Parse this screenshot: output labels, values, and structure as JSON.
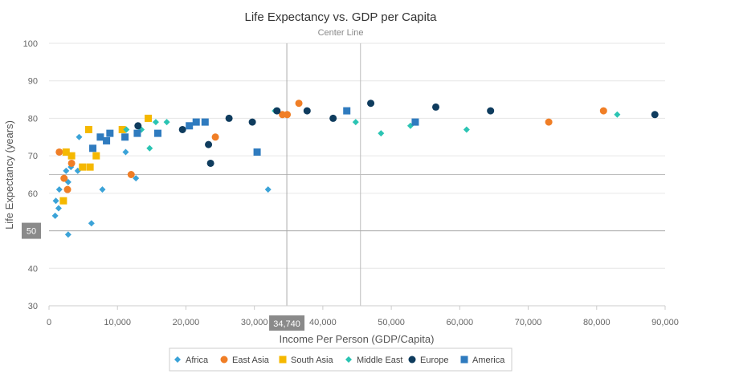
{
  "chart_data": {
    "type": "scatter",
    "title": "Life Expectancy vs. GDP per Capita",
    "subtitle": "Center Line",
    "xlabel": "Income Per Person (GDP/Capita)",
    "ylabel": "Life Expectancy (years)",
    "xlim": [
      0,
      90000
    ],
    "ylim": [
      30,
      100
    ],
    "x_ticks": [
      0,
      10000,
      20000,
      30000,
      40000,
      50000,
      60000,
      70000,
      80000,
      90000
    ],
    "x_tick_labels": [
      "0",
      "10,000",
      "20,000",
      "30,000",
      "40,000",
      "50,000",
      "60,000",
      "70,000",
      "80,000",
      "90,000"
    ],
    "y_ticks": [
      30,
      40,
      50,
      60,
      70,
      80,
      90,
      100
    ],
    "y_tick_labels": [
      "30",
      "40",
      "50",
      "60",
      "70",
      "80",
      "90",
      "100"
    ],
    "grid": "horizontal",
    "legend_position": "bottom",
    "reference_lines": {
      "vertical_x": 45500,
      "horizontal_y": 65,
      "crosshair_x": 34740,
      "crosshair_y": 50,
      "crosshair_x_label": "34,740",
      "crosshair_y_label": "50"
    },
    "series": [
      {
        "name": "Africa",
        "color": "#3ba3d8",
        "marker": "diamond",
        "points": [
          [
            900,
            54
          ],
          [
            1000,
            58
          ],
          [
            1400,
            56
          ],
          [
            1500,
            61
          ],
          [
            2300,
            64
          ],
          [
            2500,
            66
          ],
          [
            2800,
            49
          ],
          [
            2800,
            63
          ],
          [
            3200,
            67
          ],
          [
            4200,
            66
          ],
          [
            4400,
            75
          ],
          [
            6200,
            52
          ],
          [
            7800,
            61
          ],
          [
            11200,
            71
          ],
          [
            12700,
            64
          ],
          [
            32000,
            61
          ]
        ]
      },
      {
        "name": "East Asia",
        "color": "#f07e26",
        "marker": "circle",
        "points": [
          [
            1500,
            71
          ],
          [
            2200,
            64
          ],
          [
            2700,
            61
          ],
          [
            3300,
            68
          ],
          [
            12000,
            65
          ],
          [
            24300,
            75
          ],
          [
            34100,
            81
          ],
          [
            34800,
            81
          ],
          [
            36500,
            84
          ],
          [
            73000,
            79
          ],
          [
            81000,
            82
          ]
        ]
      },
      {
        "name": "South Asia",
        "color": "#f5b800",
        "marker": "square",
        "points": [
          [
            2100,
            58
          ],
          [
            2500,
            71
          ],
          [
            3300,
            70
          ],
          [
            4900,
            67
          ],
          [
            5800,
            77
          ],
          [
            6000,
            67
          ],
          [
            6900,
            70
          ],
          [
            10700,
            77
          ],
          [
            14500,
            80
          ]
        ]
      },
      {
        "name": "Middle East",
        "color": "#2bc4b3",
        "marker": "diamond",
        "points": [
          [
            11300,
            77
          ],
          [
            13500,
            77
          ],
          [
            14700,
            72
          ],
          [
            15600,
            79
          ],
          [
            17200,
            79
          ],
          [
            33000,
            82
          ],
          [
            44800,
            79
          ],
          [
            48500,
            76
          ],
          [
            52800,
            78
          ],
          [
            61000,
            77
          ],
          [
            83000,
            81
          ]
        ]
      },
      {
        "name": "Europe",
        "color": "#0f3c5e",
        "marker": "circle",
        "points": [
          [
            13000,
            78
          ],
          [
            19500,
            77
          ],
          [
            23300,
            73
          ],
          [
            23600,
            68
          ],
          [
            26300,
            80
          ],
          [
            29700,
            79
          ],
          [
            33300,
            82
          ],
          [
            37700,
            82
          ],
          [
            41500,
            80
          ],
          [
            47000,
            84
          ],
          [
            56500,
            83
          ],
          [
            64500,
            82
          ],
          [
            88500,
            81
          ]
        ]
      },
      {
        "name": "America",
        "color": "#2f7bbf",
        "marker": "square",
        "points": [
          [
            6400,
            72
          ],
          [
            7500,
            75
          ],
          [
            8400,
            74
          ],
          [
            8900,
            76
          ],
          [
            11100,
            75
          ],
          [
            12900,
            76
          ],
          [
            15900,
            76
          ],
          [
            20500,
            78
          ],
          [
            21500,
            79
          ],
          [
            22800,
            79
          ],
          [
            30400,
            71
          ],
          [
            43500,
            82
          ],
          [
            53500,
            79
          ]
        ]
      }
    ]
  }
}
